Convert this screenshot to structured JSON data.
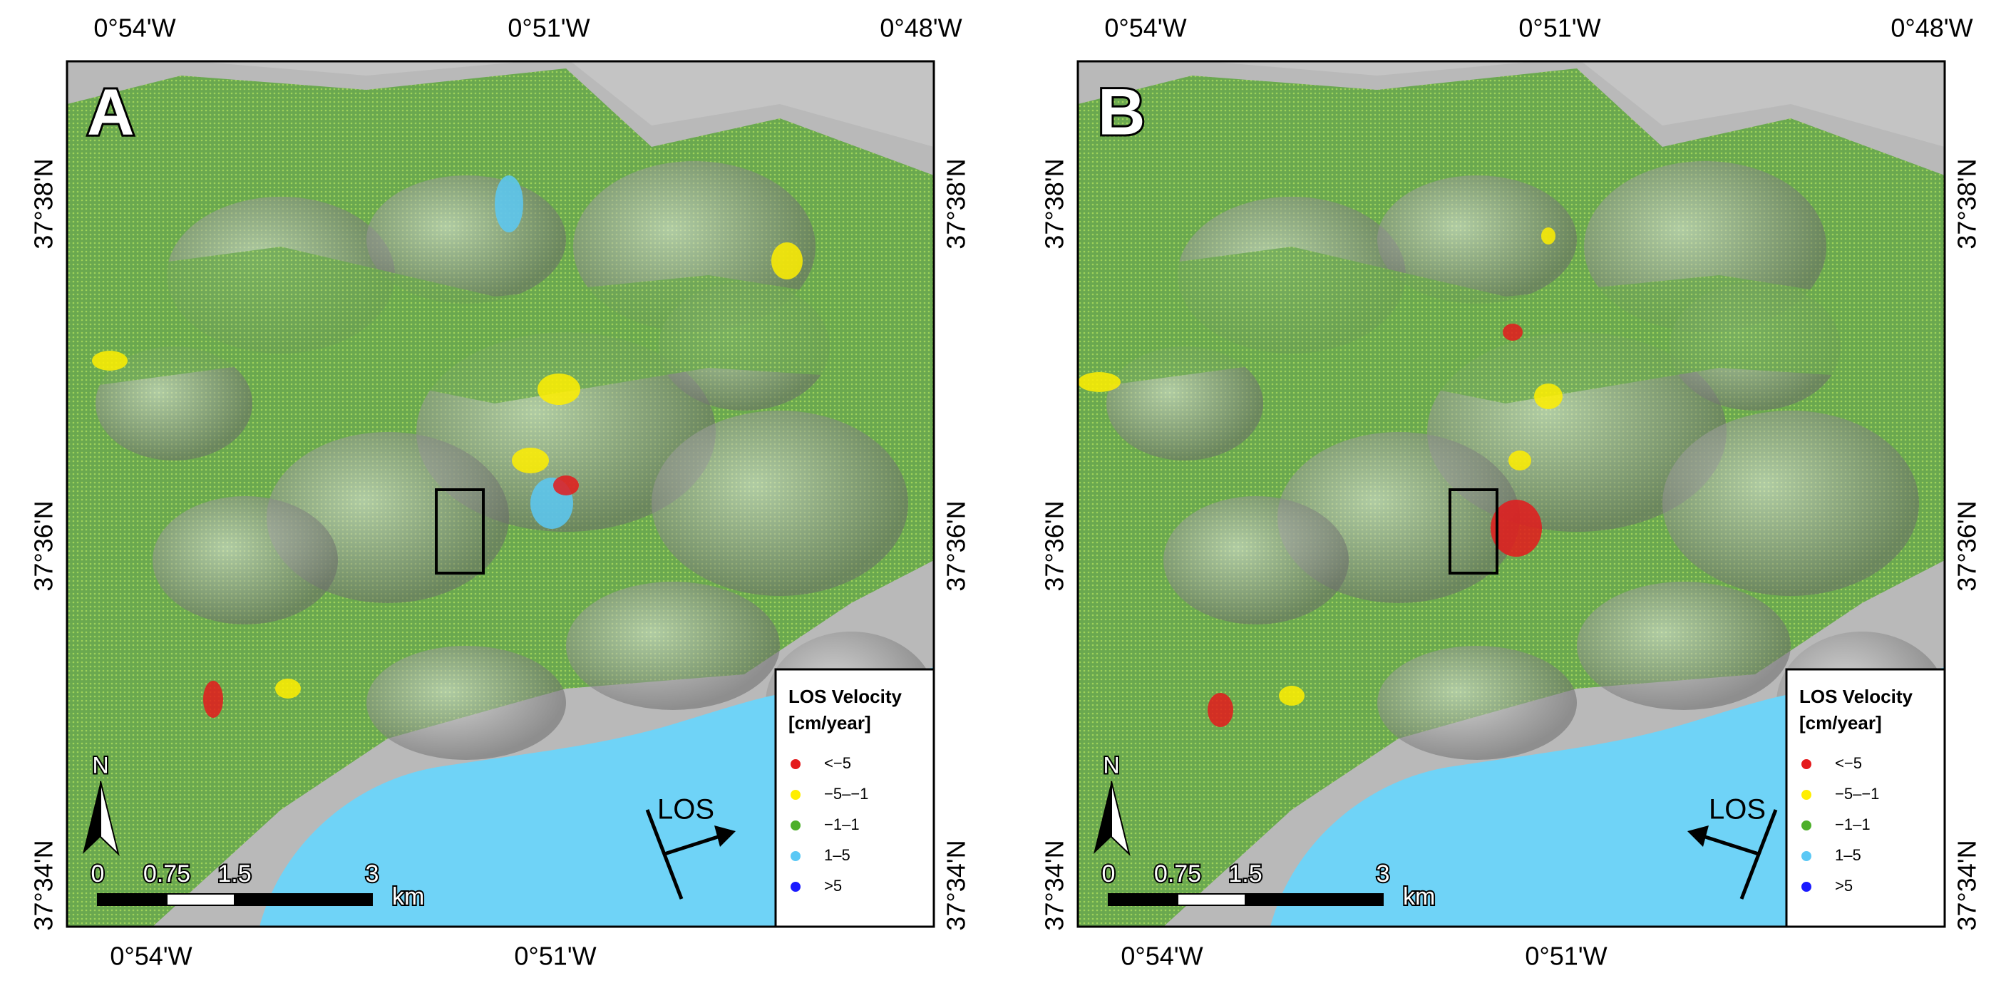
{
  "panels": [
    {
      "label": "A",
      "los_label": "LOS",
      "los_dir": "east"
    },
    {
      "label": "B",
      "los_label": "LOS",
      "los_dir": "west"
    }
  ],
  "top_labels": [
    "0°54'W",
    "0°51'W",
    "0°48'W"
  ],
  "bottom_labels": [
    "0°54'W",
    "0°51'W"
  ],
  "side_labels": [
    "37°38'N",
    "37°36'N",
    "37°34'N"
  ],
  "legend": {
    "title": "LOS Velocity",
    "unit": "[cm/year]",
    "entries": [
      {
        "label": "<−5",
        "color": "#e41a1c"
      },
      {
        "label": "−5–−1",
        "color": "#ffee00"
      },
      {
        "label": "−1–1",
        "color": "#4daf2a"
      },
      {
        "label": "1–5",
        "color": "#5bc8f5"
      },
      {
        "label": ">5",
        "color": "#1a1aff"
      }
    ]
  },
  "scale_bar": {
    "labels": [
      "0",
      "0.75",
      "1.5",
      "3"
    ],
    "unit": "km"
  },
  "north": "N"
}
